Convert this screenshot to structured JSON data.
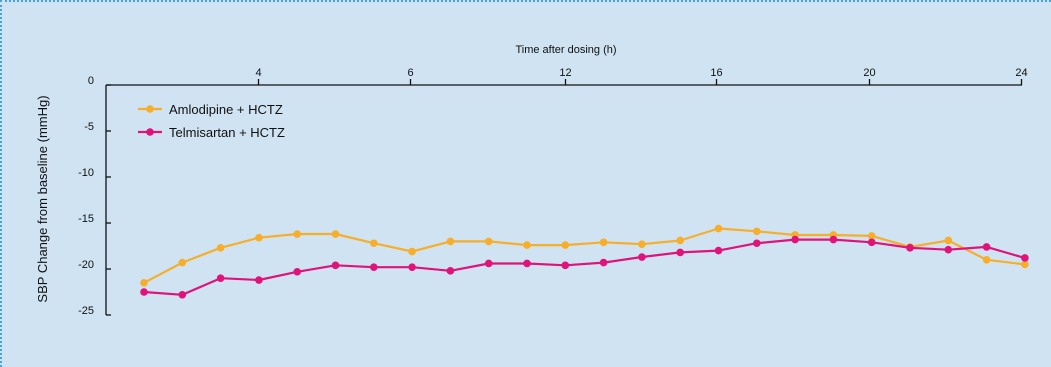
{
  "chart_data": {
    "type": "line",
    "xlabel": "Time after dosing (h)",
    "ylabel": "SBP Change from baseline (mmHg)",
    "x_tick_labels": [
      "4",
      "6",
      "12",
      "16",
      "20",
      "24"
    ],
    "y_ticks": [
      0,
      -5,
      -10,
      -15,
      -20,
      -25
    ],
    "y_tick_labels": [
      "0",
      "-5",
      "-10",
      "-15",
      "-20",
      "-25"
    ],
    "ylim": [
      -25,
      0
    ],
    "x_points": 24,
    "legend_position": "top-left",
    "grid": false,
    "series": [
      {
        "name": "Amlodipine + HCTZ",
        "color": "#f7ae2b",
        "values": [
          -21.5,
          -19.3,
          -17.7,
          -16.6,
          -16.2,
          -16.2,
          -17.2,
          -18.1,
          -17.0,
          -17.0,
          -17.4,
          -17.4,
          -17.1,
          -17.3,
          -16.9,
          -15.6,
          -15.9,
          -16.3,
          -16.3,
          -16.4,
          -17.6,
          -16.9,
          -19.0,
          -19.5
        ]
      },
      {
        "name": "Telmisartan + HCTZ",
        "color": "#e0137a",
        "values": [
          -22.5,
          -22.8,
          -21.0,
          -21.2,
          -20.3,
          -19.6,
          -19.8,
          -19.8,
          -20.2,
          -19.4,
          -19.4,
          -19.6,
          -19.3,
          -18.7,
          -18.2,
          -18.0,
          -17.2,
          -16.8,
          -16.8,
          -17.1,
          -17.7,
          -17.9,
          -17.6,
          -18.8
        ]
      }
    ]
  }
}
